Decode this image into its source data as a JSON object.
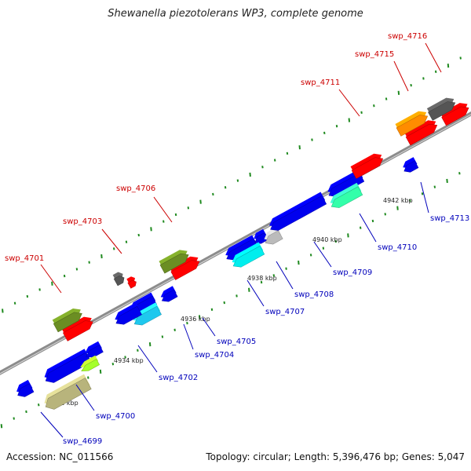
{
  "header": {
    "title": "Shewanella piezotolerans WP3, complete genome"
  },
  "footer": {
    "accession": "Accession: NC_011566",
    "summary": "Topology: circular; Length: 5,396,476 bp; Genes: 5,047"
  },
  "colors": {
    "backbone": "#8c8c8c",
    "forward_label": "#cc0000",
    "reverse_label": "#0000bb",
    "tick_marks": "#1f8a1f"
  },
  "ticks": [
    {
      "label": "4932 kbp"
    },
    {
      "label": "4934 kbp"
    },
    {
      "label": "4936 kbp"
    },
    {
      "label": "4938 kbp"
    },
    {
      "label": "4940 kbp"
    },
    {
      "label": "4942 kbp"
    }
  ],
  "genes": [
    {
      "id": "swp_4699",
      "label": "swp_4699",
      "strand": "-",
      "color": "#b8b47c"
    },
    {
      "id": "swp_4700",
      "label": "swp_4700",
      "strand": "-",
      "color": "#a6ff2a"
    },
    {
      "id": "swp_4701",
      "label": "swp_4701",
      "strand": "+",
      "color": "#6b8e23"
    },
    {
      "id": "swp_4702",
      "label": "swp_4702",
      "strand": "-",
      "color": "#1ec8ee"
    },
    {
      "id": "swp_4703",
      "label": "swp_4703",
      "strand": "+",
      "color": "#555555"
    },
    {
      "id": "swp_4704",
      "label": "swp_4704",
      "strand": "-",
      "color": "#0000ee"
    },
    {
      "id": "swp_4705",
      "label": "swp_4705",
      "strand": "-",
      "color": "#0000ee"
    },
    {
      "id": "swp_4706",
      "label": "swp_4706",
      "strand": "+",
      "color": "#6b8e23"
    },
    {
      "id": "swp_4707",
      "label": "swp_4707",
      "strand": "-",
      "color": "#00eeee"
    },
    {
      "id": "swp_4708",
      "label": "swp_4708",
      "strand": "-",
      "color": "#bbbbbb"
    },
    {
      "id": "swp_4709",
      "label": "swp_4709",
      "strand": "-",
      "color": "#0000ee"
    },
    {
      "id": "swp_4710",
      "label": "swp_4710",
      "strand": "-",
      "color": "#33ffaa"
    },
    {
      "id": "swp_4711",
      "label": "swp_4711",
      "strand": "+",
      "color": "#ff0000"
    },
    {
      "id": "swp_4713",
      "label": "swp_4713",
      "strand": "-",
      "color": "#0000ee"
    },
    {
      "id": "swp_4715",
      "label": "swp_4715",
      "strand": "+",
      "color": "#ff8c00"
    },
    {
      "id": "swp_4716",
      "label": "swp_4716",
      "strand": "+",
      "color": "#555555"
    }
  ]
}
